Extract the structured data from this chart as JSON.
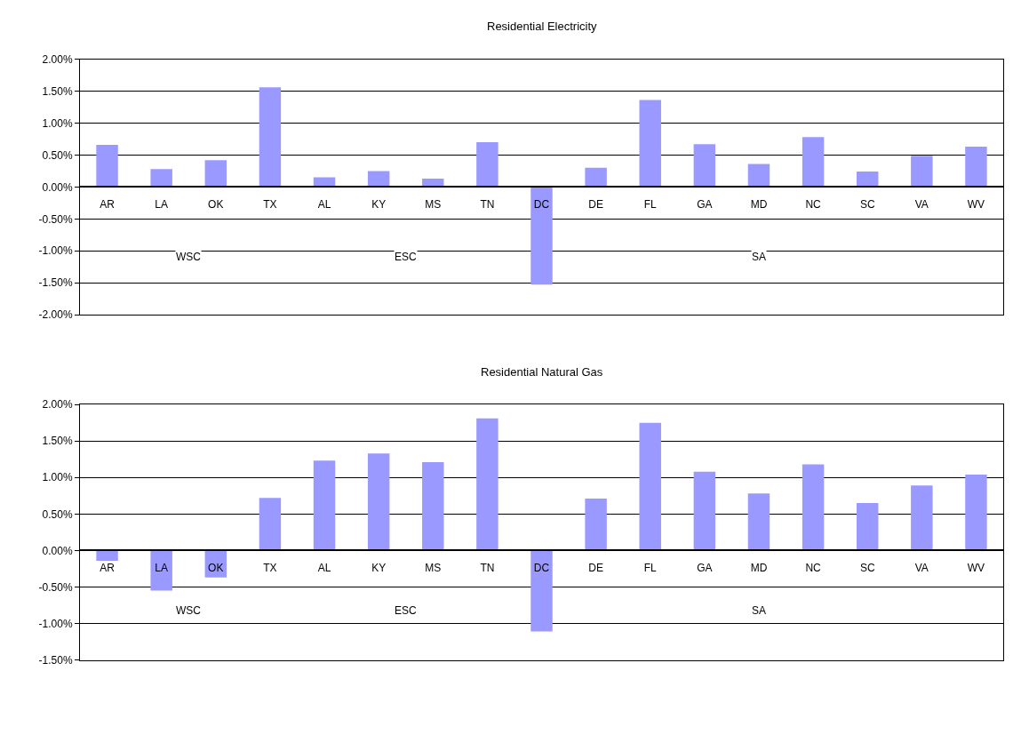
{
  "chart_data": [
    {
      "type": "bar",
      "title": "Residential Electricity",
      "categories": [
        "AR",
        "LA",
        "OK",
        "TX",
        "AL",
        "KY",
        "MS",
        "TN",
        "DC",
        "DE",
        "FL",
        "GA",
        "MD",
        "NC",
        "SC",
        "VA",
        "WV"
      ],
      "values": [
        0.66,
        0.28,
        0.42,
        1.56,
        0.15,
        0.25,
        0.13,
        0.7,
        -1.53,
        0.3,
        1.36,
        0.67,
        0.36,
        0.78,
        0.24,
        0.49,
        0.63
      ],
      "color": "#9999ff",
      "ylim": [
        -2.0,
        2.0
      ],
      "yticks": [
        {
          "value": 2.0,
          "label": "2.00%"
        },
        {
          "value": 1.5,
          "label": "1.50%"
        },
        {
          "value": 1.0,
          "label": "1.00%"
        },
        {
          "value": 0.5,
          "label": "0.50%"
        },
        {
          "value": 0.0,
          "label": "0.00%"
        },
        {
          "value": -0.5,
          "label": "-0.50%"
        },
        {
          "value": -1.0,
          "label": "-1.00%"
        },
        {
          "value": -1.5,
          "label": "-1.50%"
        },
        {
          "value": -2.0,
          "label": "-2.00%"
        }
      ],
      "grid": "y",
      "annotations": [
        "WSC",
        "ESC",
        "SA"
      ]
    },
    {
      "type": "bar",
      "title": "Residential Natural Gas",
      "categories": [
        "AR",
        "LA",
        "OK",
        "TX",
        "AL",
        "KY",
        "MS",
        "TN",
        "DC",
        "DE",
        "FL",
        "GA",
        "MD",
        "NC",
        "SC",
        "VA",
        "WV"
      ],
      "values": [
        -0.14,
        -0.55,
        -0.37,
        0.72,
        1.23,
        1.33,
        1.21,
        1.81,
        -1.11,
        0.71,
        1.75,
        1.08,
        0.78,
        1.18,
        0.65,
        0.89,
        1.04
      ],
      "color": "#9999ff",
      "ylim": [
        -1.5,
        2.0
      ],
      "yticks": [
        {
          "value": 2.0,
          "label": "2.00%"
        },
        {
          "value": 1.5,
          "label": "1.50%"
        },
        {
          "value": 1.0,
          "label": "1.00%"
        },
        {
          "value": 0.5,
          "label": "0.50%"
        },
        {
          "value": 0.0,
          "label": "0.00%"
        },
        {
          "value": -0.5,
          "label": "-0.50%"
        },
        {
          "value": -1.0,
          "label": "-1.00%"
        },
        {
          "value": -1.5,
          "label": "-1.50%"
        }
      ],
      "grid": "y",
      "annotations": [
        "WSC",
        "ESC",
        "SA"
      ]
    }
  ]
}
